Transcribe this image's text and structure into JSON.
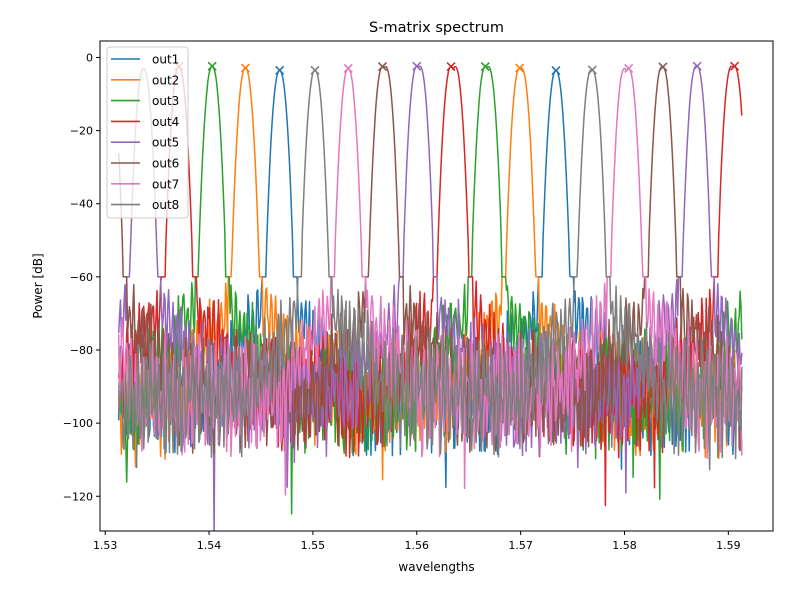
{
  "chart_data": {
    "type": "line",
    "title": "S-matrix spectrum",
    "xlabel": "wavelengths",
    "ylabel": "Power [dB]",
    "xlim": [
      1.5295,
      1.5943
    ],
    "ylim": [
      -129.5,
      4.5
    ],
    "x_range": [
      1.5313,
      1.5913
    ],
    "xticks": [
      1.53,
      1.54,
      1.55,
      1.56,
      1.57,
      1.58,
      1.59
    ],
    "xtick_labels": [
      "1.53",
      "1.54",
      "1.55",
      "1.56",
      "1.57",
      "1.58",
      "1.59"
    ],
    "yticks": [
      0,
      -20,
      -40,
      -60,
      -80,
      -100,
      -120
    ],
    "ytick_labels": [
      "0",
      "−20",
      "−40",
      "−60",
      "−80",
      "−100",
      "−120"
    ],
    "grid": false,
    "legend_position": "upper-left",
    "passband_edge_db": -55,
    "series": [
      {
        "name": "out1",
        "color": "#1f77b4",
        "peaks": [
          [
            1.5468,
            -3.5
          ],
          [
            1.5734,
            -3.6
          ]
        ]
      },
      {
        "name": "out2",
        "color": "#ff7f0e",
        "peaks": [
          [
            1.5435,
            -2.9
          ],
          [
            1.5699,
            -2.9
          ]
        ]
      },
      {
        "name": "out3",
        "color": "#2ca02c",
        "peaks": [
          [
            1.5403,
            -2.4
          ],
          [
            1.5666,
            -2.5
          ]
        ]
      },
      {
        "name": "out4",
        "color": "#d62728",
        "peaks": [
          [
            1.5371,
            -2.5
          ],
          [
            1.5633,
            -2.5
          ],
          [
            1.5906,
            -2.4
          ]
        ]
      },
      {
        "name": "out5",
        "color": "#9467bd",
        "peaks": [
          [
            1.5337,
            -3.0
          ],
          [
            1.56,
            -2.4
          ],
          [
            1.587,
            -2.4
          ]
        ]
      },
      {
        "name": "out6",
        "color": "#8c564b",
        "peaks": [
          [
            1.5304,
            -3.0
          ],
          [
            1.5567,
            -2.5
          ],
          [
            1.5837,
            -2.6
          ]
        ]
      },
      {
        "name": "out7",
        "color": "#e377c2",
        "peaks": [
          [
            1.5534,
            -3.0
          ],
          [
            1.5804,
            -3.0
          ]
        ]
      },
      {
        "name": "out8",
        "color": "#7f7f7f",
        "peaks": [
          [
            1.5502,
            -3.5
          ],
          [
            1.5769,
            -3.4
          ]
        ]
      }
    ]
  }
}
